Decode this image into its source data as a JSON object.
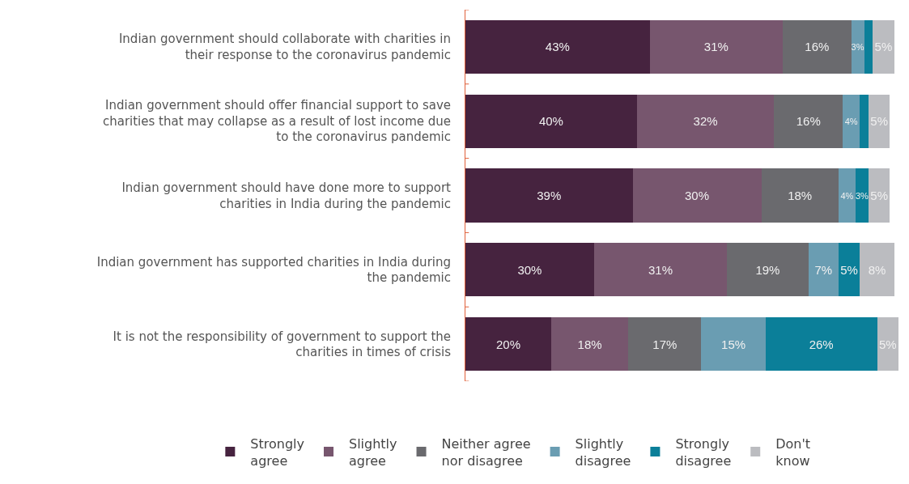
{
  "chart_data": {
    "type": "bar",
    "orientation": "horizontal",
    "stacked": true,
    "legend": "bottom",
    "data_labels": false,
    "categories": [
      "Indian government should collaborate with charities in their response to the coronavirus pandemic",
      "Indian government should offer financial support to save charities that may collapse as a result of lost income due to the coronavirus pandemic",
      "Indian government should have done more to support charities in India during the pandemic",
      "Indian government has supported charities in India during the pandemic",
      "It is not the responsibility of government to support the charities in times of crisis"
    ],
    "series": [
      {
        "name": "Strongly agree",
        "color": "#46233f",
        "values": [
          43,
          40,
          39,
          30,
          20
        ],
        "value_labels": [
          "43%",
          "40%",
          "39%",
          "30%",
          "20%"
        ]
      },
      {
        "name": "Slightly agree",
        "color": "#77566e",
        "values": [
          31,
          32,
          30,
          31,
          18
        ],
        "value_labels": [
          "31%",
          "32%",
          "30%",
          "31%",
          "18%"
        ]
      },
      {
        "name": "Neither agree nor disagree",
        "color": "#6a6a6e",
        "values": [
          16,
          16,
          18,
          19,
          17
        ],
        "value_labels": [
          "16%",
          "16%",
          "18%",
          "19%",
          "17%"
        ]
      },
      {
        "name": "Slightly disagree",
        "color": "#6a9db2",
        "values": [
          3,
          4,
          4,
          7,
          15
        ],
        "value_labels": [
          "3%",
          "4%",
          "4%",
          "7%",
          "15%"
        ]
      },
      {
        "name": "Strongly disagree",
        "color": "#0b7f99",
        "values": [
          2,
          2,
          3,
          5,
          26
        ],
        "value_labels": [
          null,
          null,
          "3%",
          "5%",
          "26%"
        ]
      },
      {
        "name": "Don't know",
        "color": "#bbbcc0",
        "values": [
          5,
          5,
          5,
          8,
          5
        ],
        "value_labels": [
          "5%",
          "5%",
          "5%",
          "8%",
          "5%"
        ]
      }
    ]
  }
}
